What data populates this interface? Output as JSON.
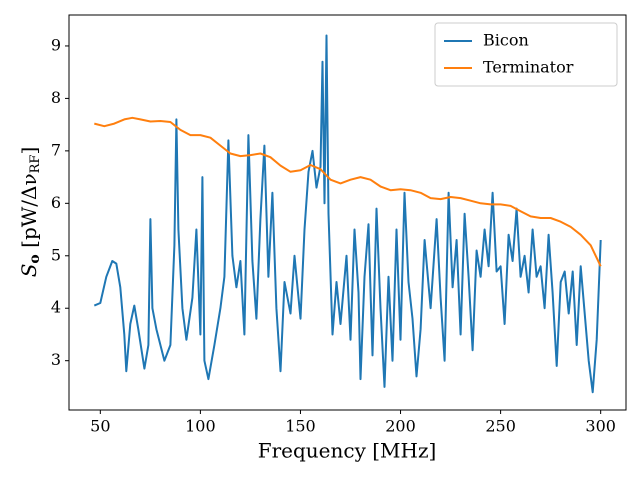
{
  "chart_data": {
    "type": "line",
    "xlabel": "Frequency [MHz]",
    "ylabel": [
      "S",
      "o",
      " [pW/Δν",
      "RF",
      "]"
    ],
    "xlim": [
      34.35,
      312.65
    ],
    "xticks": [
      50,
      100,
      150,
      200,
      250,
      300
    ],
    "ylim": [
      2.06,
      9.59
    ],
    "yticks": [
      3,
      4,
      5,
      6,
      7,
      8,
      9
    ],
    "grid": false,
    "legend": "upper right",
    "series": [
      {
        "name": "Bicon",
        "color": "#1f77b4",
        "x": [
          47,
          50,
          53,
          56,
          58,
          60,
          62,
          63,
          65,
          67,
          69,
          72,
          74,
          75,
          76,
          78,
          82,
          85,
          87,
          88,
          89,
          91,
          93,
          96,
          98,
          100,
          101,
          102,
          104,
          107,
          110,
          112,
          114,
          116,
          118,
          120,
          122,
          124,
          126,
          128,
          130,
          132,
          134,
          136,
          138,
          140,
          142,
          145,
          147,
          150,
          152,
          154,
          156,
          158,
          160,
          161,
          162,
          163,
          164,
          166,
          168,
          170,
          173,
          175,
          177,
          179,
          180,
          182,
          184,
          186,
          188,
          190,
          192,
          194,
          196,
          198,
          200,
          202,
          204,
          206,
          208,
          210,
          212,
          215,
          218,
          220,
          222,
          224,
          226,
          228,
          230,
          232,
          234,
          236,
          238,
          240,
          242,
          244,
          246,
          248,
          250,
          252,
          254,
          256,
          258,
          260,
          262,
          264,
          266,
          268,
          270,
          272,
          274,
          276,
          278,
          280,
          282,
          284,
          286,
          288,
          290,
          292,
          294,
          296,
          298,
          300
        ],
        "values": [
          4.05,
          4.1,
          4.6,
          4.9,
          4.85,
          4.4,
          3.5,
          2.8,
          3.7,
          4.05,
          3.6,
          2.85,
          3.3,
          5.7,
          4.0,
          3.6,
          3.0,
          3.3,
          5.2,
          7.6,
          5.5,
          4.0,
          3.4,
          4.2,
          5.5,
          3.5,
          6.5,
          3.0,
          2.65,
          3.3,
          4.0,
          4.6,
          7.2,
          5.0,
          4.4,
          4.9,
          3.5,
          7.3,
          4.9,
          3.8,
          5.7,
          7.1,
          4.6,
          6.2,
          4.0,
          2.8,
          4.5,
          3.9,
          5.0,
          3.8,
          5.5,
          6.6,
          7.0,
          6.3,
          6.7,
          8.7,
          6.0,
          9.2,
          5.8,
          3.5,
          4.5,
          3.7,
          5.0,
          3.4,
          5.5,
          4.3,
          2.65,
          4.6,
          5.6,
          3.1,
          5.9,
          4.0,
          2.5,
          4.6,
          3.0,
          5.5,
          3.4,
          6.2,
          4.5,
          3.8,
          2.7,
          3.6,
          5.3,
          4.0,
          5.7,
          4.2,
          3.0,
          6.2,
          4.4,
          5.3,
          3.5,
          5.8,
          4.6,
          3.2,
          5.1,
          4.6,
          5.5,
          4.8,
          6.2,
          4.7,
          4.8,
          3.7,
          5.4,
          4.9,
          5.9,
          4.6,
          5.0,
          4.3,
          5.5,
          4.6,
          4.8,
          4.0,
          5.4,
          4.3,
          2.9,
          4.5,
          4.7,
          3.9,
          4.7,
          3.3,
          4.8,
          3.9,
          3.0,
          2.4,
          3.4,
          5.3
        ]
      },
      {
        "name": "Terminator",
        "color": "#ff7f0e",
        "x": [
          47,
          52,
          57,
          62,
          66,
          70,
          75,
          80,
          85,
          90,
          95,
          100,
          105,
          110,
          115,
          120,
          125,
          130,
          135,
          140,
          145,
          150,
          155,
          160,
          165,
          170,
          175,
          180,
          185,
          190,
          195,
          200,
          205,
          210,
          215,
          220,
          225,
          230,
          235,
          240,
          245,
          250,
          255,
          260,
          265,
          270,
          275,
          280,
          285,
          290,
          295,
          300
        ],
        "values": [
          7.52,
          7.47,
          7.52,
          7.6,
          7.63,
          7.6,
          7.56,
          7.57,
          7.55,
          7.4,
          7.3,
          7.3,
          7.25,
          7.1,
          6.95,
          6.9,
          6.92,
          6.95,
          6.88,
          6.72,
          6.6,
          6.63,
          6.73,
          6.65,
          6.45,
          6.38,
          6.45,
          6.5,
          6.45,
          6.32,
          6.25,
          6.27,
          6.25,
          6.2,
          6.1,
          6.08,
          6.12,
          6.1,
          6.05,
          6.0,
          5.98,
          5.98,
          5.95,
          5.85,
          5.75,
          5.72,
          5.72,
          5.65,
          5.55,
          5.4,
          5.2,
          4.8
        ]
      }
    ]
  }
}
